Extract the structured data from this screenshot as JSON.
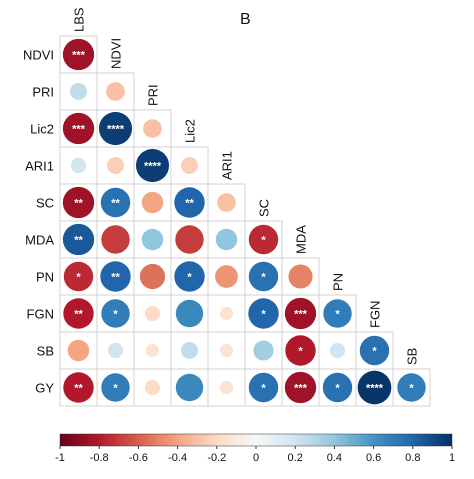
{
  "panel_label": "B",
  "chart_data": {
    "type": "heatmap",
    "subtype": "lower-triangular correlation matrix (circle size and color encode correlation)",
    "row_labels": [
      "NDVI",
      "PRI",
      "Lic2",
      "ARI1",
      "SC",
      "MDA",
      "PN",
      "FGN",
      "SB",
      "GY"
    ],
    "col_labels": [
      "LBS",
      "NDVI",
      "PRI",
      "Lic2",
      "ARI1",
      "SC",
      "MDA",
      "PN",
      "FGN",
      "SB"
    ],
    "matrix": [
      [
        -0.85,
        null,
        null,
        null,
        null,
        null,
        null,
        null,
        null,
        null
      ],
      [
        0.25,
        -0.3,
        null,
        null,
        null,
        null,
        null,
        null,
        null,
        null
      ],
      [
        -0.85,
        0.95,
        -0.3,
        null,
        null,
        null,
        null,
        null,
        null,
        null
      ],
      [
        0.2,
        -0.25,
        0.95,
        -0.25,
        null,
        null,
        null,
        null,
        null,
        null
      ],
      [
        -0.85,
        0.75,
        -0.4,
        0.8,
        -0.3,
        null,
        null,
        null,
        null,
        null
      ],
      [
        0.85,
        -0.7,
        0.4,
        -0.7,
        0.4,
        -0.75,
        null,
        null,
        null,
        null
      ],
      [
        -0.75,
        0.8,
        -0.55,
        0.8,
        -0.45,
        0.75,
        -0.5,
        null,
        null,
        null
      ],
      [
        -0.8,
        0.7,
        -0.2,
        0.65,
        -0.15,
        0.8,
        -0.85,
        0.7,
        null,
        null
      ],
      [
        -0.4,
        0.2,
        -0.15,
        0.25,
        -0.15,
        0.35,
        -0.8,
        0.2,
        0.75,
        null
      ],
      [
        -0.8,
        0.7,
        -0.2,
        0.65,
        -0.15,
        0.75,
        -0.85,
        0.75,
        0.98,
        0.7
      ]
    ],
    "significance": [
      [
        "***",
        "",
        "",
        "",
        "",
        "",
        "",
        "",
        "",
        ""
      ],
      [
        "",
        "",
        "",
        "",
        "",
        "",
        "",
        "",
        "",
        ""
      ],
      [
        "***",
        "****",
        "",
        "",
        "",
        "",
        "",
        "",
        "",
        ""
      ],
      [
        "",
        "",
        "****",
        "",
        "",
        "",
        "",
        "",
        "",
        ""
      ],
      [
        "**",
        "**",
        "",
        "**",
        "",
        "",
        "",
        "",
        "",
        ""
      ],
      [
        "**",
        "",
        "",
        "",
        "",
        "*",
        "",
        "",
        "",
        ""
      ],
      [
        "*",
        "**",
        "",
        "*",
        "",
        "*",
        "",
        "",
        "",
        ""
      ],
      [
        "**",
        "*",
        "",
        "",
        "",
        "*",
        "***",
        "*",
        "",
        ""
      ],
      [
        "",
        "",
        "",
        "",
        "",
        "",
        "*",
        "",
        "*",
        ""
      ],
      [
        "**",
        "*",
        "",
        "",
        "",
        "*",
        "***",
        "*",
        "****",
        "*"
      ]
    ],
    "colorbar": {
      "ticks": [
        "-1",
        "-0.8",
        "-0.6",
        "-0.4",
        "-0.2",
        "0",
        "0.2",
        "0.4",
        "0.6",
        "0.8",
        "1"
      ],
      "range": [
        -1,
        1
      ],
      "stops": [
        "#67001f",
        "#b2182b",
        "#d6604d",
        "#f4a582",
        "#fddbc7",
        "#f7f7f7",
        "#d1e5f0",
        "#92c5de",
        "#4393c3",
        "#2166ac",
        "#053061"
      ]
    }
  }
}
